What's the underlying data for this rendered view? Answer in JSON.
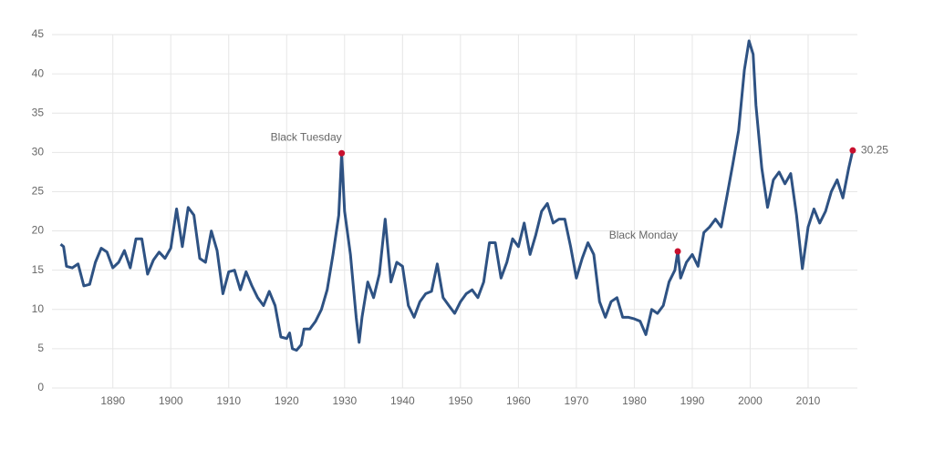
{
  "chart_data": {
    "type": "line",
    "x": [
      1881,
      1881.5,
      1882,
      1883,
      1884,
      1885,
      1886,
      1887,
      1888,
      1889,
      1890,
      1891,
      1892,
      1893,
      1894,
      1895,
      1896,
      1897,
      1898,
      1899,
      1900,
      1901,
      1902,
      1903,
      1904,
      1905,
      1906,
      1907,
      1908,
      1909,
      1910,
      1911,
      1912,
      1913,
      1914,
      1915,
      1916,
      1917,
      1918,
      1919,
      1920,
      1920.5,
      1921,
      1921.7,
      1922.5,
      1923,
      1924,
      1925,
      1926,
      1927,
      1928,
      1929,
      1929.5,
      1930,
      1931,
      1932,
      1932.5,
      1933,
      1934,
      1935,
      1936,
      1937,
      1938,
      1939,
      1940,
      1941,
      1942,
      1943,
      1944,
      1945,
      1946,
      1947,
      1948,
      1949,
      1950,
      1951,
      1952,
      1953,
      1954,
      1955,
      1956,
      1957,
      1958,
      1959,
      1960,
      1961,
      1962,
      1963,
      1964,
      1965,
      1966,
      1967,
      1968,
      1969,
      1970,
      1971,
      1972,
      1973,
      1974,
      1975,
      1976,
      1977,
      1978,
      1979,
      1980,
      1981,
      1982,
      1983,
      1984,
      1985,
      1986,
      1987,
      1987.5,
      1988,
      1989,
      1990,
      1991,
      1992,
      1993,
      1994,
      1995,
      1996,
      1997,
      1998,
      1999,
      1999.8,
      2000.5,
      2001,
      2002,
      2003,
      2004,
      2005,
      2006,
      2007,
      2008,
      2009,
      2010,
      2011,
      2012,
      2013,
      2014,
      2015,
      2016,
      2017,
      2017.7
    ],
    "values": [
      18.3,
      18,
      15.5,
      15.3,
      15.8,
      13,
      13.2,
      16,
      17.8,
      17.3,
      15.3,
      16,
      17.5,
      15.3,
      19,
      19,
      14.5,
      16.3,
      17.3,
      16.5,
      17.8,
      22.8,
      18,
      23,
      22,
      16.5,
      16,
      20,
      17.5,
      12,
      14.8,
      15,
      12.5,
      14.8,
      13,
      11.5,
      10.5,
      12.3,
      10.5,
      6.5,
      6.3,
      7,
      5,
      4.8,
      5.5,
      7.5,
      7.5,
      8.5,
      10,
      12.5,
      17,
      22,
      29.9,
      22.5,
      17,
      9,
      5.8,
      9,
      13.5,
      11.5,
      14.5,
      21.5,
      13.5,
      16,
      15.5,
      10.5,
      9,
      11,
      12,
      12.3,
      15.8,
      11.5,
      10.5,
      9.5,
      11,
      12,
      12.5,
      11.5,
      13.5,
      18.5,
      18.5,
      14,
      16,
      19,
      18,
      21,
      17,
      19.5,
      22.5,
      23.5,
      21,
      21.5,
      21.5,
      18,
      14,
      16.5,
      18.5,
      17,
      11,
      9,
      11,
      11.5,
      9,
      9,
      8.8,
      8.5,
      6.8,
      10,
      9.5,
      10.5,
      13.5,
      15,
      17.4,
      14,
      16,
      17,
      15.5,
      19.8,
      20.5,
      21.5,
      20.5,
      24.5,
      28.5,
      32.8,
      40.5,
      44.2,
      42.5,
      36,
      28,
      23,
      26.5,
      27.5,
      26,
      27.3,
      22,
      15.2,
      20.5,
      22.8,
      21,
      22.5,
      25,
      26.5,
      24.2,
      28,
      30.25
    ],
    "color": "#2e5283",
    "xlim": [
      1879.5,
      2018.5
    ],
    "ylim": [
      0,
      45
    ],
    "xticks": [
      1890,
      1900,
      1910,
      1920,
      1930,
      1940,
      1950,
      1960,
      1970,
      1980,
      1990,
      2000,
      2010
    ],
    "yticks": [
      0,
      5,
      10,
      15,
      20,
      25,
      30,
      35,
      40,
      45
    ],
    "grid": true,
    "annotations": [
      {
        "label": "Black Tuesday",
        "x": 1929.5,
        "y": 29.9,
        "color": "#c8102e"
      },
      {
        "label": "Black Monday",
        "x": 1987.5,
        "y": 17.4,
        "color": "#c8102e"
      },
      {
        "x": 2017.7,
        "y": 30.25,
        "color": "#c8102e"
      }
    ]
  }
}
